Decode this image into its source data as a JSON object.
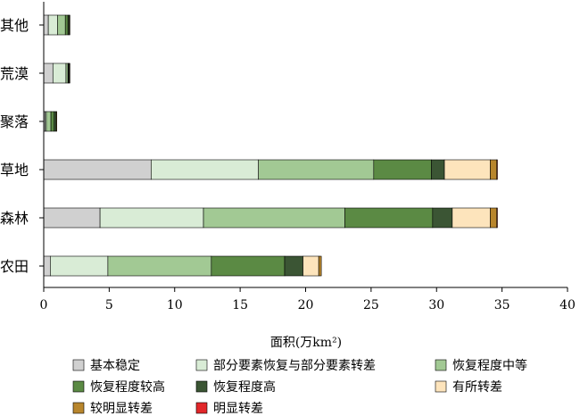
{
  "chart_data": {
    "type": "bar",
    "orientation": "horizontal",
    "stacked": true,
    "categories": [
      "其他",
      "荒漠",
      "聚落",
      "草地",
      "森林",
      "农田"
    ],
    "xlabel": "面积(万km²)",
    "ylabel": "",
    "xlim": [
      0,
      40
    ],
    "xticks": [
      0,
      5,
      10,
      15,
      20,
      25,
      30,
      35,
      40
    ],
    "grid": false,
    "legend_position": "bottom",
    "series": [
      {
        "name": "基本稳定",
        "color": "#d0d0d0",
        "values": [
          0.35,
          0.7,
          0.1,
          8.2,
          4.3,
          0.5
        ]
      },
      {
        "name": "部分要素恢复与部分要素转差",
        "color": "#d9ecd6",
        "values": [
          0.7,
          1.0,
          0.1,
          8.2,
          7.9,
          4.4
        ]
      },
      {
        "name": "恢复程度中等",
        "color": "#a2c994",
        "values": [
          0.6,
          0.15,
          0.35,
          8.8,
          10.8,
          7.9
        ]
      },
      {
        "name": "恢复程度较高",
        "color": "#5b8a44",
        "values": [
          0.2,
          0.05,
          0.25,
          4.4,
          6.7,
          5.6
        ]
      },
      {
        "name": "恢复程度高",
        "color": "#3b5534",
        "values": [
          0.1,
          0.05,
          0.15,
          1.0,
          1.5,
          1.4
        ]
      },
      {
        "name": "有所转差",
        "color": "#fde4bc",
        "values": [
          0.0,
          0.0,
          0.0,
          3.5,
          2.9,
          1.2
        ]
      },
      {
        "name": "较明显转差",
        "color": "#b8862d",
        "values": [
          0.05,
          0.05,
          0.05,
          0.5,
          0.5,
          0.2
        ]
      },
      {
        "name": "明显转差",
        "color": "#e2272a",
        "values": [
          0.0,
          0.0,
          0.0,
          0.05,
          0.05,
          0.0
        ]
      }
    ]
  }
}
